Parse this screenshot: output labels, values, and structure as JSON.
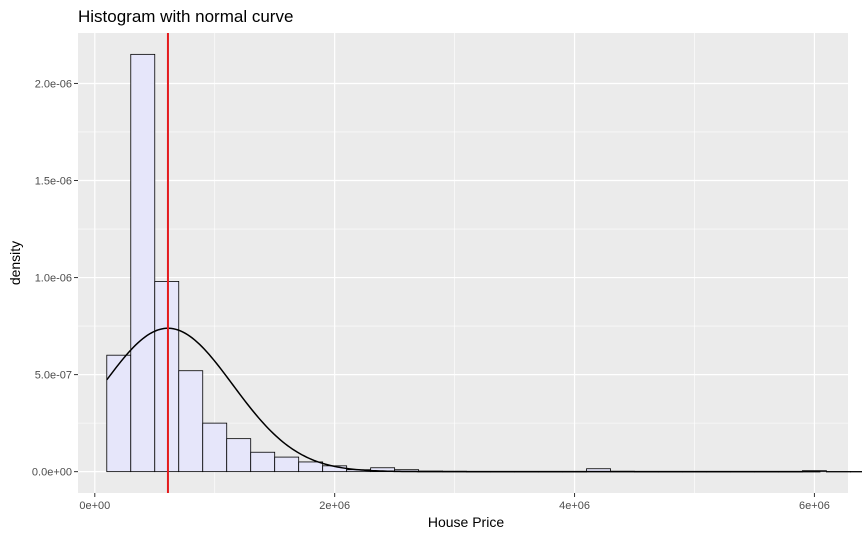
{
  "chart_data": {
    "type": "bar",
    "title": "Histogram with normal curve",
    "xlabel": "House Price",
    "ylabel": "density",
    "xlim": [
      -140000,
      6280000
    ],
    "ylim": [
      -1.1e-07,
      2.26e-06
    ],
    "x_ticks": [
      {
        "value": 0,
        "label": "0e+00"
      },
      {
        "value": 2000000,
        "label": "2e+06"
      },
      {
        "value": 4000000,
        "label": "4e+06"
      },
      {
        "value": 6000000,
        "label": "6e+06"
      }
    ],
    "y_ticks": [
      {
        "value": 0,
        "label": "0.0e+00"
      },
      {
        "value": 5e-07,
        "label": "5.0e-07"
      },
      {
        "value": 1e-06,
        "label": "1.0e-06"
      },
      {
        "value": 1.5e-06,
        "label": "1.5e-06"
      },
      {
        "value": 2e-06,
        "label": "2.0e-06"
      }
    ],
    "grid": true,
    "bins": {
      "bin_width": 200000,
      "edges_start": 100000,
      "fill": "#e6e6fa",
      "outline": "#000000",
      "density": [
        6e-07,
        2.15e-06,
        9.8e-07,
        5.2e-07,
        2.5e-07,
        1.7e-07,
        1e-07,
        7.5e-08,
        5e-08,
        3e-08,
        1e-08,
        2e-08,
        1e-08,
        3e-09,
        2e-09,
        1e-09,
        1e-09,
        1e-09,
        1e-09,
        1e-09,
        1.5e-08,
        2e-09,
        1e-09,
        1e-09,
        1e-09,
        1e-09,
        1e-09,
        1e-09,
        1e-09,
        5e-09,
        1e-09,
        1e-09,
        1e-09,
        1e-09,
        1e-09,
        1e-09,
        1e-09,
        1e-09,
        1e-09,
        1e-09
      ]
    },
    "normal_curve": {
      "mean": 610000,
      "sd": 540000,
      "x_from": 100000,
      "x_to": 6050000,
      "color": "#000000"
    },
    "vline": {
      "x": 610000,
      "color": "#e41a1c"
    },
    "panel_background": "#ebebeb",
    "grid_color": "#ffffff"
  }
}
